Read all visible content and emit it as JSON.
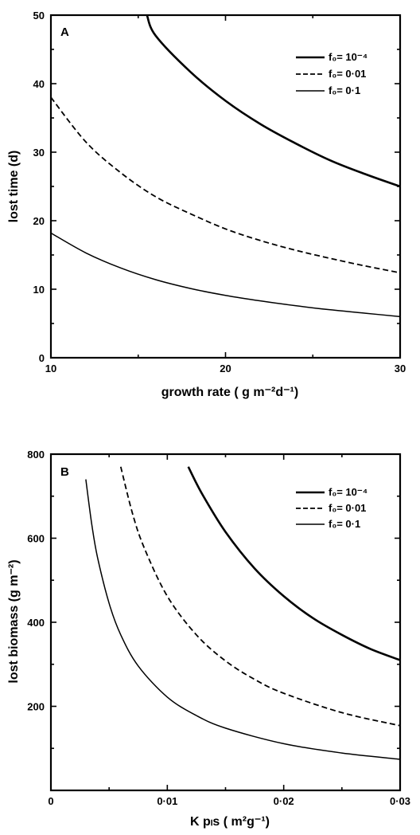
{
  "chart_data": [
    {
      "panel": "A",
      "type": "line",
      "xlabel": "growth rate ( g m⁻²d⁻¹)",
      "ylabel": "lost time (d)",
      "xlim": [
        10,
        30
      ],
      "ylim": [
        0,
        50
      ],
      "xticks": [
        10,
        20,
        30
      ],
      "xtick_labels": [
        "10",
        "20",
        "30"
      ],
      "yticks": [
        0,
        10,
        20,
        30,
        40,
        50
      ],
      "ytick_labels": [
        "0",
        "10",
        "20",
        "30",
        "40",
        "50"
      ],
      "grid": false,
      "legend_position": "top-right",
      "series": [
        {
          "name": "f₀= 10⁻⁴",
          "style": "solid-thick",
          "x": [
            15.5,
            16,
            18,
            20,
            22,
            24,
            26,
            28,
            30
          ],
          "y": [
            50,
            47,
            41.7,
            37.5,
            34.1,
            31.3,
            28.8,
            26.8,
            25
          ]
        },
        {
          "name": "f₀= 0·01",
          "style": "dashed",
          "x": [
            10,
            12,
            14,
            16,
            18,
            20,
            22,
            24,
            26,
            28,
            30
          ],
          "y": [
            38,
            31.5,
            27,
            23.5,
            21,
            18.8,
            17.1,
            15.7,
            14.5,
            13.4,
            12.4
          ]
        },
        {
          "name": "f₀= 0·1",
          "style": "solid-thin",
          "x": [
            10,
            12,
            14,
            16,
            18,
            20,
            22,
            24,
            26,
            28,
            30
          ],
          "y": [
            18.2,
            15.3,
            13.1,
            11.4,
            10.1,
            9.1,
            8.3,
            7.6,
            7,
            6.5,
            6
          ]
        }
      ]
    },
    {
      "panel": "B",
      "type": "line",
      "xlabel": "K pₗs  ( m²g⁻¹)",
      "ylabel": "lost biomass (g m⁻²)",
      "xlim": [
        0,
        0.03
      ],
      "ylim": [
        0,
        800
      ],
      "xticks": [
        0,
        0.01,
        0.02,
        0.03
      ],
      "xtick_labels": [
        "0",
        "0·01",
        "0·02",
        "0·03"
      ],
      "yticks": [
        200,
        400,
        600,
        800
      ],
      "ytick_labels": [
        "200",
        "400",
        "600",
        "800"
      ],
      "grid": false,
      "legend_position": "top-right",
      "series": [
        {
          "name": "f₀= 10⁻⁴",
          "style": "solid-thick",
          "x": [
            0.0118,
            0.013,
            0.015,
            0.0175,
            0.02,
            0.0225,
            0.025,
            0.0275,
            0.03
          ],
          "y": [
            770,
            705,
            615,
            528,
            462,
            410,
            370,
            336,
            310
          ]
        },
        {
          "name": "f₀= 0·01",
          "style": "dashed",
          "x": [
            0.006,
            0.007,
            0.008,
            0.01,
            0.0125,
            0.015,
            0.0175,
            0.02,
            0.025,
            0.03
          ],
          "y": [
            770,
            660,
            578,
            462,
            370,
            308,
            264,
            231,
            185,
            154
          ]
        },
        {
          "name": "f₀= 0·1",
          "style": "solid-thin",
          "x": [
            0.003,
            0.0035,
            0.004,
            0.005,
            0.006,
            0.0075,
            0.01,
            0.0125,
            0.015,
            0.02,
            0.025,
            0.03
          ],
          "y": [
            740,
            635,
            555,
            445,
            370,
            296,
            222,
            178,
            148,
            111,
            89,
            74
          ]
        }
      ]
    }
  ]
}
